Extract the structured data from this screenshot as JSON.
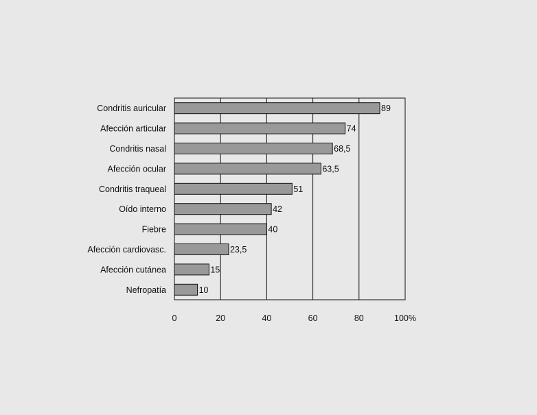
{
  "colors": {
    "background": "#e8e8e8",
    "bar_fill": "#999999",
    "bar_stroke": "#111111",
    "gridline": "#111111"
  },
  "chart_data": {
    "type": "bar",
    "orientation": "horizontal",
    "categories": [
      "Condritis auricular",
      "Afección articular",
      "Condritis nasal",
      "Afección ocular",
      "Condritis traqueal",
      "Oído interno",
      "Fiebre",
      "Afección cardiovasc.",
      "Afección cutánea",
      "Nefropatía"
    ],
    "values": [
      89,
      74,
      68.5,
      63.5,
      51,
      42,
      40,
      23.5,
      15,
      10
    ],
    "value_labels": [
      "89",
      "74",
      "68,5",
      "63,5",
      "51",
      "42",
      "40",
      "23,5",
      "15",
      "10"
    ],
    "x_ticks": [
      0,
      20,
      40,
      60,
      80,
      100
    ],
    "x_tick_labels": [
      "0",
      "20",
      "40",
      "60",
      "80",
      "100%"
    ],
    "xlim": [
      0,
      100
    ],
    "grid": "vertical",
    "legend": "none",
    "title": "",
    "xlabel": "",
    "ylabel": ""
  }
}
